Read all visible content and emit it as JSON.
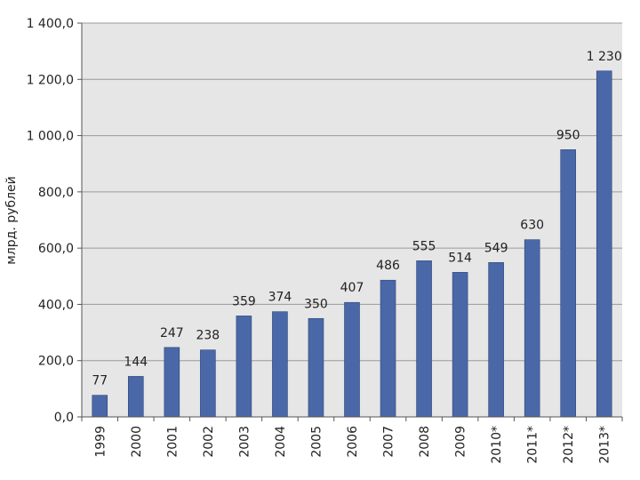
{
  "chart_data": {
    "type": "bar",
    "title": "",
    "xlabel": "",
    "ylabel": "млрд. рублей",
    "ylim": [
      0,
      1400
    ],
    "yticks": [
      0,
      200,
      400,
      600,
      800,
      1000,
      1200,
      1400
    ],
    "ytick_labels": [
      "0,0",
      "200,0",
      "400,0",
      "600,0",
      "800,0",
      "1 000,0",
      "1 200,0",
      "1 400,0"
    ],
    "categories": [
      "1999",
      "2000",
      "2001",
      "2002",
      "2003",
      "2004",
      "2005",
      "2006",
      "2007",
      "2008",
      "2009",
      "2010*",
      "2011*",
      "2012*",
      "2013*"
    ],
    "values": [
      77,
      144,
      247,
      238,
      359,
      374,
      350,
      407,
      486,
      555,
      514,
      549,
      630,
      950,
      1230
    ],
    "data_labels": [
      "77",
      "144",
      "247",
      "238",
      "359",
      "374",
      "350",
      "407",
      "486",
      "555",
      "514",
      "549",
      "630",
      "950",
      "1 230"
    ],
    "grid": true,
    "colors": {
      "bar": "#4a68a8",
      "bar_edge": "#2e4578",
      "plot_bg": "#e6e6e6",
      "grid": "#9a9a9a",
      "axis": "#555555"
    }
  }
}
